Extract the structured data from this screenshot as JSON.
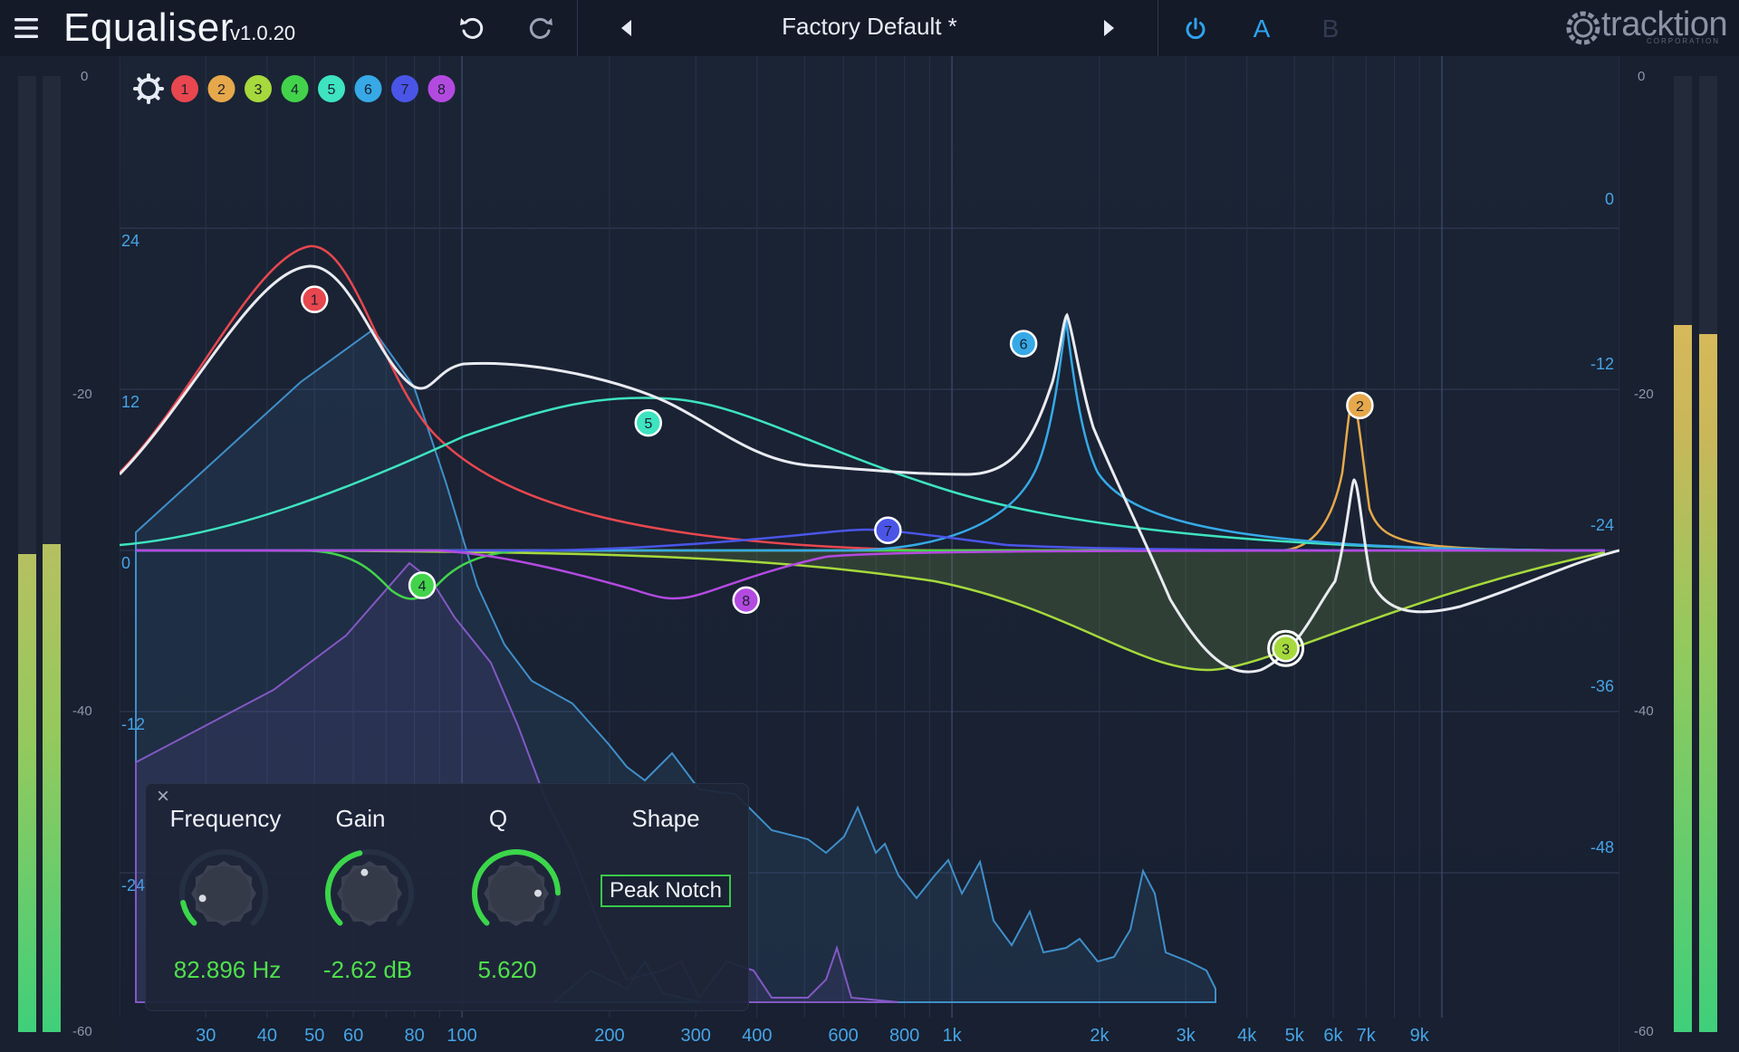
{
  "header": {
    "app_title": "Equaliser",
    "version": "v1.0.20",
    "preset_name": "Factory Default *",
    "ab_a": "A",
    "ab_b": "B",
    "logo_text": "tracktion",
    "logo_sub": "CORPORATION"
  },
  "icons": {
    "menu": "hamburger-icon",
    "undo": "undo-icon",
    "redo": "redo-icon",
    "prev": "triangle-left-icon",
    "next": "triangle-right-icon",
    "power": "power-icon",
    "settings": "gear-icon",
    "close": "close-icon"
  },
  "meters": {
    "scale": [
      "0",
      "-20",
      "-40",
      "-60"
    ],
    "left_levels": [
      0.5,
      0.51
    ],
    "right_levels": [
      0.74,
      0.73
    ]
  },
  "graph": {
    "freq_labels": [
      "30",
      "40",
      "50",
      "60",
      "80",
      "100",
      "200",
      "300",
      "400",
      "600",
      "800",
      "1k",
      "2k",
      "3k",
      "4k",
      "5k",
      "6k",
      "7k",
      "9k"
    ],
    "gain_labels": [
      "24",
      "12",
      "0",
      "-12",
      "-24"
    ],
    "right_labels": [
      "0",
      "-12",
      "-24",
      "-36",
      "-48"
    ],
    "band_toggles": [
      {
        "label": "1",
        "color": "#e8474f"
      },
      {
        "label": "2",
        "color": "#e6a84a"
      },
      {
        "label": "3",
        "color": "#a6d93c"
      },
      {
        "label": "4",
        "color": "#43d34b"
      },
      {
        "label": "5",
        "color": "#3ee3c0"
      },
      {
        "label": "6",
        "color": "#36a9e6"
      },
      {
        "label": "7",
        "color": "#4a55e8"
      },
      {
        "label": "8",
        "color": "#b34ae0"
      }
    ],
    "nodes": [
      {
        "label": "1",
        "freq": 50,
        "gain": 18.7
      },
      {
        "label": "2",
        "freq": 6800,
        "gain": 10.8
      },
      {
        "label": "3",
        "freq": 4800,
        "gain": -7.3
      },
      {
        "label": "4",
        "freq": 82.9,
        "gain": -2.6
      },
      {
        "label": "5",
        "freq": 240,
        "gain": 9.5
      },
      {
        "label": "6",
        "freq": 1400,
        "gain": 15.4
      },
      {
        "label": "7",
        "freq": 740,
        "gain": 1.5
      },
      {
        "label": "8",
        "freq": 380,
        "gain": -3.7
      }
    ]
  },
  "panel": {
    "frequency_label": "Frequency",
    "gain_label": "Gain",
    "q_label": "Q",
    "shape_label": "Shape",
    "frequency_value": "82.896 Hz",
    "gain_value": "-2.62 dB",
    "q_value": "5.620",
    "shape_value": "Peak Notch",
    "frequency_knob": 0.12,
    "gain_knob": 0.45,
    "q_knob": 0.83
  }
}
